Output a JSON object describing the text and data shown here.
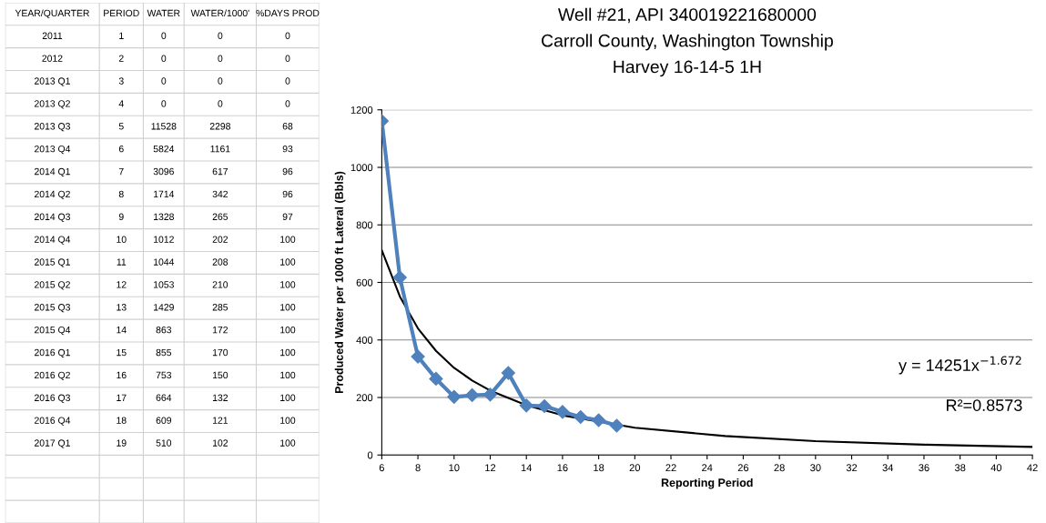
{
  "chart_data": [
    {
      "type": "other",
      "xlabel": "YEAR/QUARTER",
      "data_labels": true,
      "categories": [
        "2011",
        "2012",
        "2013 Q1",
        "2013 Q2",
        "2013 Q3",
        "2013 Q4",
        "2014 Q1",
        "2014 Q2",
        "2014 Q3",
        "2014 Q4",
        "2015 Q1",
        "2015 Q2",
        "2015 Q3",
        "2015 Q4",
        "2016 Q1",
        "2016 Q2",
        "2016 Q3",
        "2016 Q4",
        "2017 Q1"
      ],
      "series": [
        {
          "name": "PERIOD",
          "values": [
            1,
            2,
            3,
            4,
            5,
            6,
            7,
            8,
            9,
            10,
            11,
            12,
            13,
            14,
            15,
            16,
            17,
            18,
            19
          ]
        },
        {
          "name": "WATER",
          "values": [
            0,
            0,
            0,
            0,
            11528,
            5824,
            3096,
            1714,
            1328,
            1012,
            1044,
            1053,
            1429,
            863,
            855,
            753,
            664,
            609,
            510
          ]
        },
        {
          "name": "WATER/1000'",
          "values": [
            0,
            0,
            0,
            0,
            2298,
            1161,
            617,
            342,
            265,
            202,
            208,
            210,
            285,
            172,
            170,
            150,
            132,
            121,
            102
          ]
        },
        {
          "name": "%DAYS PROD",
          "values": [
            0,
            0,
            0,
            0,
            68,
            93,
            96,
            96,
            97,
            100,
            100,
            100,
            100,
            100,
            100,
            100,
            100,
            100,
            100
          ]
        }
      ]
    },
    {
      "type": "line",
      "title": "Well #21, API 340019221680000\nCarroll County, Washington Township\nHarvey 16-14-5 1H",
      "xlabel": "Reporting Period",
      "ylabel": "Produced Water per 1000 ft Lateral (Bbls)",
      "xlim": [
        6,
        42
      ],
      "xticks": [
        6,
        8,
        10,
        12,
        14,
        16,
        18,
        20,
        22,
        24,
        26,
        28,
        30,
        32,
        34,
        36,
        38,
        40,
        42
      ],
      "ylim": [
        0,
        1200
      ],
      "yticks": [
        0,
        200,
        400,
        600,
        800,
        1000,
        1200
      ],
      "grid": "y",
      "legend": false,
      "series": [
        {
          "type": "line",
          "color": "#4f81bd",
          "marker": "diamond",
          "x": [
            6,
            7,
            8,
            9,
            10,
            11,
            12,
            13,
            14,
            15,
            16,
            17,
            18,
            19
          ],
          "values": [
            1161,
            617,
            342,
            265,
            202,
            208,
            210,
            285,
            172,
            170,
            150,
            132,
            121,
            102
          ]
        },
        {
          "type": "line",
          "color": "#000000",
          "marker": "none",
          "x": [
            6,
            7,
            8,
            9,
            10,
            11,
            12,
            14,
            16,
            20,
            25,
            30,
            36,
            42
          ],
          "values": [
            712,
            551,
            440,
            362,
            303,
            259,
            224,
            173,
            138,
            95,
            66,
            48,
            36,
            28
          ]
        }
      ],
      "annotations": [
        "y = 14251x$^{−1.672}$",
        "R²=0.8573"
      ]
    }
  ]
}
